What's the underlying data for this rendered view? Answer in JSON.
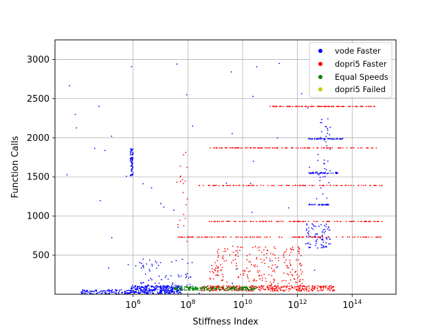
{
  "chart_data": {
    "type": "scatter",
    "title": "",
    "xlabel": "Stiffness Index",
    "ylabel": "Function Calls",
    "xscale": "log",
    "xlim_exponent": [
      3.15,
      15.6
    ],
    "ylim": [
      0,
      3250
    ],
    "x_ticks": [
      {
        "exp": 6,
        "base": "10",
        "sup": "6"
      },
      {
        "exp": 8,
        "base": "10",
        "sup": "8"
      },
      {
        "exp": 10,
        "base": "10",
        "sup": "10"
      },
      {
        "exp": 12,
        "base": "10",
        "sup": "12"
      },
      {
        "exp": 14,
        "base": "10",
        "sup": "14"
      }
    ],
    "y_ticks": [
      500,
      1000,
      1500,
      2000,
      2500,
      3000
    ],
    "grid": true,
    "legend_position": "top-right",
    "series": [
      {
        "name": "vode Faster",
        "color": "#0000ff",
        "clusters": [
          {
            "x_exp": [
              5.9,
              7.8
            ],
            "y": [
              10,
              110
            ],
            "n": 320
          },
          {
            "x_exp": [
              4.1,
              6.0
            ],
            "y": [
              0,
              60
            ],
            "n": 120
          },
          {
            "x_exp": [
              5.9,
              6.0
            ],
            "y": [
              1500,
              1870
            ],
            "n": 60
          },
          {
            "x_exp": [
              12.4,
              13.7
            ],
            "y": [
              1980,
              1990
            ],
            "n": 50
          },
          {
            "x_exp": [
              12.4,
              13.5
            ],
            "y": [
              1540,
              1560
            ],
            "n": 40
          },
          {
            "x_exp": [
              12.4,
              13.2
            ],
            "y": [
              1140,
              1150
            ],
            "n": 30
          },
          {
            "x_exp": [
              12.3,
              13.2
            ],
            "y": [
              590,
              900
            ],
            "n": 80
          },
          {
            "x_exp": [
              12.7,
              13.2
            ],
            "y": [
              1200,
              2350
            ],
            "n": 40
          },
          {
            "x_exp": [
              6.0,
              8.2
            ],
            "y": [
              100,
              450
            ],
            "n": 60
          },
          {
            "x_exp": [
              3.3,
              13.0
            ],
            "y": [
              0,
              3050
            ],
            "n": 50
          }
        ]
      },
      {
        "name": "dopri5 Faster",
        "color": "#ff0000",
        "clusters": [
          {
            "x_exp": [
              8.5,
              13.4
            ],
            "y": [
              40,
              110
            ],
            "n": 350
          },
          {
            "x_exp": [
              9.0,
              12.2
            ],
            "y": [
              110,
              620
            ],
            "n": 200
          },
          {
            "x_exp": [
              8.8,
              9.3
            ],
            "y": [
              180,
              430
            ],
            "n": 25
          },
          {
            "x_exp": [
              11.0,
              14.9
            ],
            "y": [
              2398,
              2402
            ],
            "n": 110
          },
          {
            "x_exp": [
              8.6,
              14.9
            ],
            "y": [
              1868,
              1872
            ],
            "n": 110
          },
          {
            "x_exp": [
              8.4,
              15.1
            ],
            "y": [
              1388,
              1392
            ],
            "n": 110
          },
          {
            "x_exp": [
              8.7,
              15.1
            ],
            "y": [
              928,
              932
            ],
            "n": 110
          },
          {
            "x_exp": [
              7.6,
              15.1
            ],
            "y": [
              728,
              732
            ],
            "n": 120
          },
          {
            "x_exp": [
              7.6,
              8.0
            ],
            "y": [
              600,
              1880
            ],
            "n": 20
          }
        ]
      },
      {
        "name": "Equal Speeds",
        "color": "#008000",
        "clusters": [
          {
            "x_exp": [
              7.5,
              10.5
            ],
            "y": [
              50,
              100
            ],
            "n": 200
          }
        ]
      },
      {
        "name": "dopri5 Failed",
        "color": "#c8c800",
        "clusters": []
      }
    ]
  }
}
